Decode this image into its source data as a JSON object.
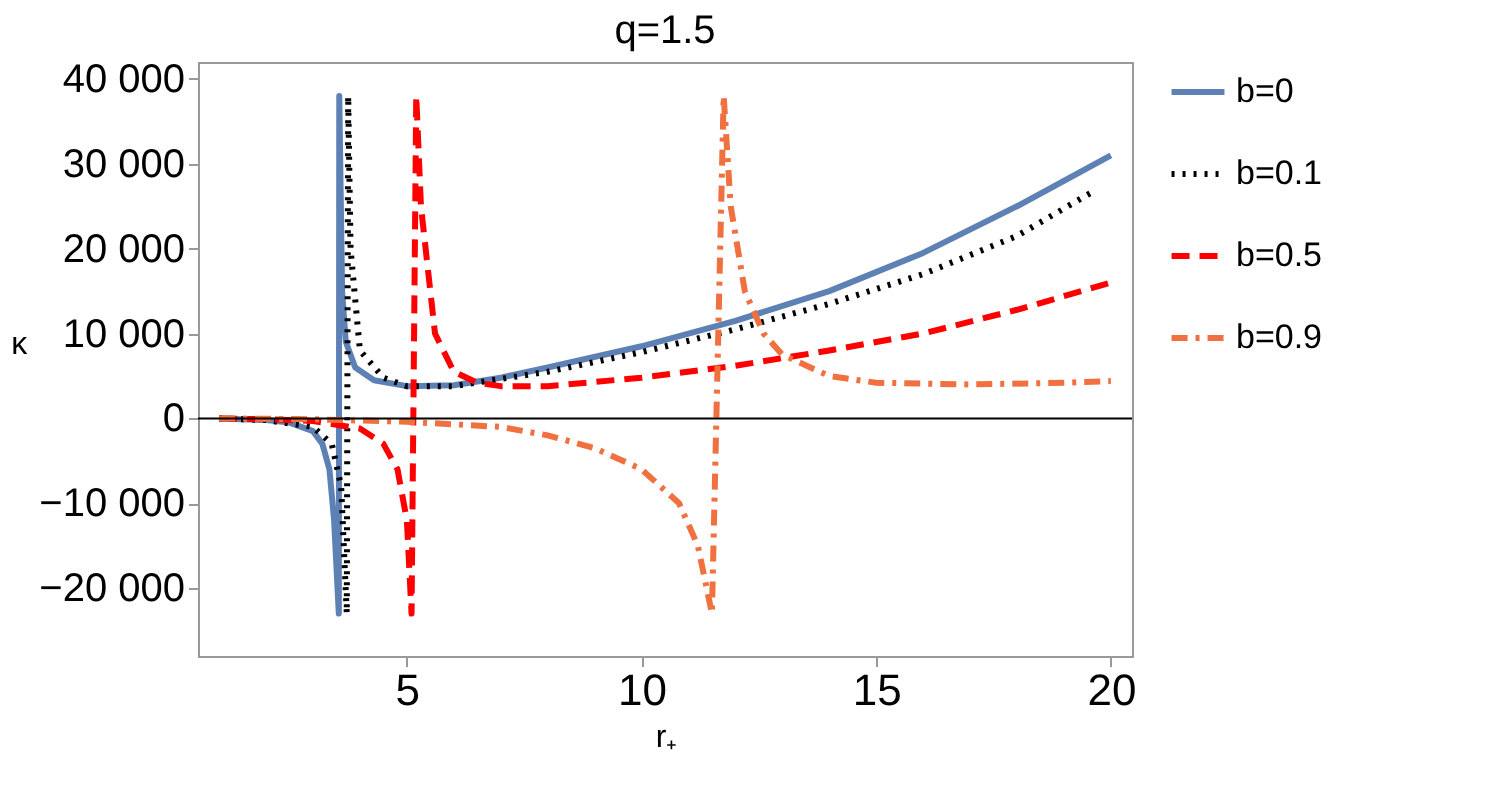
{
  "chart_data": {
    "type": "line",
    "title": "q=1.5",
    "xlabel": "r₊",
    "ylabel": "κ",
    "xlim": [
      0.55,
      20.45
    ],
    "xticks": [
      5,
      10,
      15,
      20
    ],
    "ylim": [
      -28000,
      42000
    ],
    "yticks": [
      {
        "value": -20000,
        "label": "−20 000"
      },
      {
        "value": -10000,
        "label": "−10 000"
      },
      {
        "value": 0,
        "label": "0"
      },
      {
        "value": 10000,
        "label": "10 000"
      },
      {
        "value": 20000,
        "label": "20 000"
      },
      {
        "value": 30000,
        "label": "30 000"
      },
      {
        "value": 40000,
        "label": "40 000"
      }
    ],
    "legend": "right",
    "grid": false,
    "ref_lines": [
      {
        "axis": "y",
        "value": 0,
        "color": "#000000"
      }
    ],
    "series": [
      {
        "name": "b=0",
        "color": "#5e81b5",
        "line_style": "solid",
        "x": [
          1,
          2,
          2.5,
          3,
          3.2,
          3.35,
          3.45,
          3.55,
          3.56,
          3.62,
          3.7,
          3.9,
          4.3,
          5,
          6,
          7,
          8,
          10,
          12,
          14,
          16,
          18,
          20
        ],
        "values": [
          0,
          -200,
          -500,
          -1500,
          -3000,
          -6000,
          -12000,
          -23000,
          38000,
          15000,
          9000,
          6000,
          4500,
          3800,
          3900,
          4800,
          6000,
          8500,
          11500,
          15000,
          19500,
          25000,
          31000
        ]
      },
      {
        "name": "b=0.1",
        "color": "#000000",
        "line_style": "dotted",
        "x": [
          1,
          2,
          3,
          3.4,
          3.6,
          3.72,
          3.75,
          3.8,
          4,
          4.5,
          5,
          6,
          8,
          10,
          12,
          14,
          16,
          18,
          19.7
        ],
        "values": [
          0,
          -200,
          -1000,
          -3000,
          -8000,
          -23000,
          38000,
          20000,
          8000,
          4800,
          3800,
          3800,
          5500,
          7800,
          10500,
          13500,
          17000,
          21500,
          27000
        ]
      },
      {
        "name": "b=0.5",
        "color": "#ff0000",
        "line_style": "dashed",
        "x": [
          1,
          2,
          3,
          4,
          4.5,
          4.8,
          5,
          5.1,
          5.2,
          5.3,
          5.6,
          6,
          6.5,
          7,
          8,
          10,
          12,
          14,
          16,
          18,
          20
        ],
        "values": [
          0,
          -100,
          -300,
          -1200,
          -3000,
          -6000,
          -12000,
          -23000,
          38000,
          25000,
          10000,
          5500,
          4200,
          3800,
          3800,
          4800,
          6200,
          8000,
          10000,
          12800,
          16000
        ]
      },
      {
        "name": "b=0.9",
        "color": "#f07040",
        "line_style": "dashdot",
        "x": [
          1,
          3,
          5,
          7,
          8,
          9,
          10,
          10.8,
          11.2,
          11.5,
          11.75,
          11.9,
          12.2,
          12.6,
          13,
          14,
          15,
          17,
          19,
          20
        ],
        "values": [
          0,
          -100,
          -400,
          -1000,
          -2000,
          -3500,
          -6000,
          -10000,
          -15000,
          -23000,
          38000,
          25000,
          15000,
          10000,
          7500,
          5000,
          4200,
          4000,
          4200,
          4400
        ]
      }
    ]
  }
}
